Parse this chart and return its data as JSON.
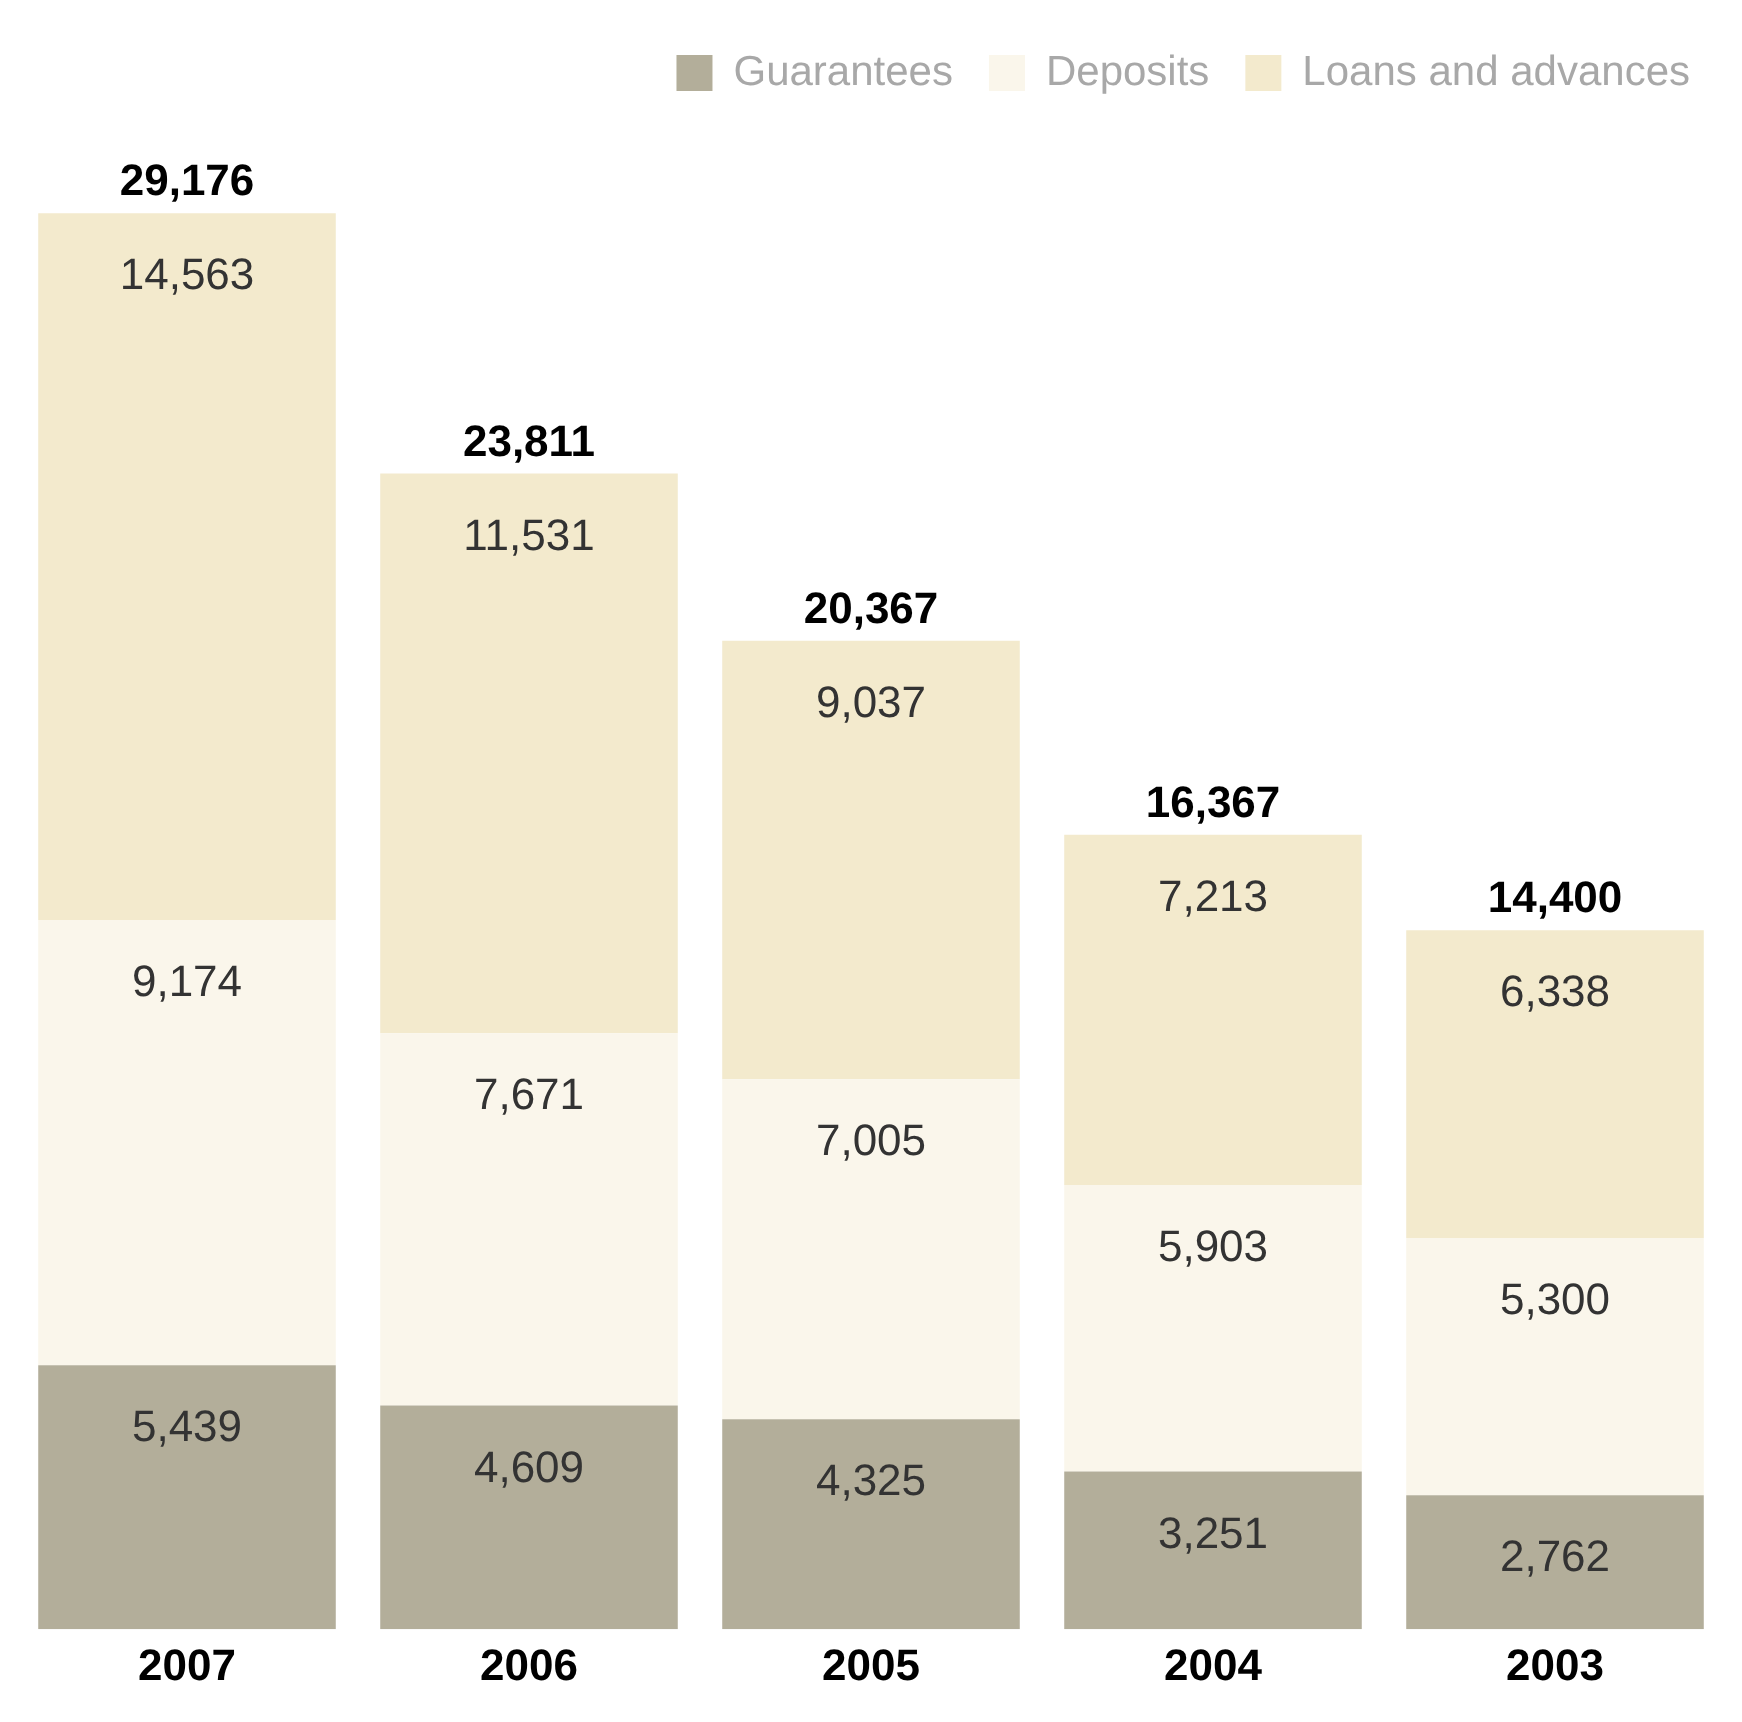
{
  "chart_data": {
    "type": "bar",
    "stacked": true,
    "categories": [
      "2007",
      "2006",
      "2005",
      "2004",
      "2003"
    ],
    "series": [
      {
        "name": "Guarantees",
        "color": "#b3ae9a",
        "values": [
          5439,
          4609,
          4325,
          3251,
          2762
        ],
        "value_labels": [
          "5,439",
          "4,609",
          "4,325",
          "3,251",
          "2,762"
        ]
      },
      {
        "name": "Deposits",
        "color": "#faf6eb",
        "values": [
          9174,
          7671,
          7005,
          5903,
          5300
        ],
        "value_labels": [
          "9,174",
          "7,671",
          "7,005",
          "5,903",
          "5,300"
        ]
      },
      {
        "name": "Loans and advances",
        "color": "#f3eacd",
        "values": [
          14563,
          11531,
          9037,
          7213,
          6338
        ],
        "value_labels": [
          "14,563",
          "11,531",
          "9,037",
          "7,213",
          "6,338"
        ]
      }
    ],
    "totals": [
      "29,176",
      "23,811",
      "20,367",
      "16,367",
      "14,400"
    ],
    "legend": "top right",
    "grid": false
  }
}
